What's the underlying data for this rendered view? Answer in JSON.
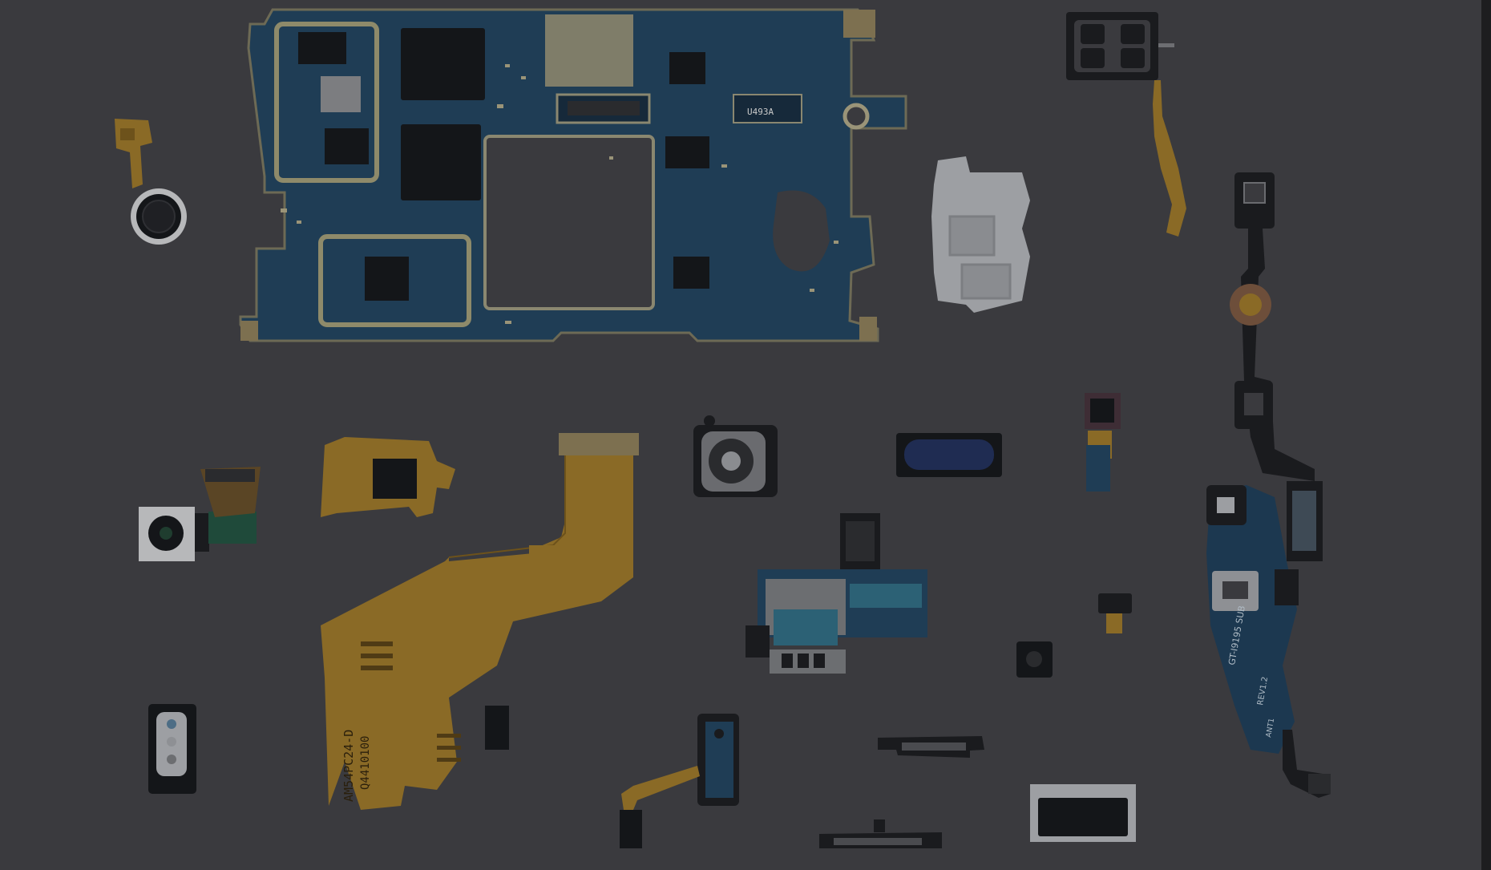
{
  "image": {
    "subject": "disassembled smartphone components",
    "theme": "dark overlay",
    "colors": {
      "backdrop": "#3a3a3e",
      "edge_strip": "#1d1d1f",
      "pcb_blue": "#1f3d55",
      "pcb_dark": "#16293a",
      "flex_gold": "#8a6a26",
      "flex_gold_dark": "#6d521b",
      "chip": "#141619",
      "metal": "#8e9094",
      "paper": "#9d9fa3",
      "rubber": "#1a1b1e"
    }
  },
  "labels": {
    "top_connector": "U493A",
    "flex_main": "AM54PC24-D",
    "flex_code": "Q4410100",
    "sub_board": "GT-I9195 SUB",
    "sub_rev": "REV1.2",
    "sub_ant": "ANT1"
  }
}
